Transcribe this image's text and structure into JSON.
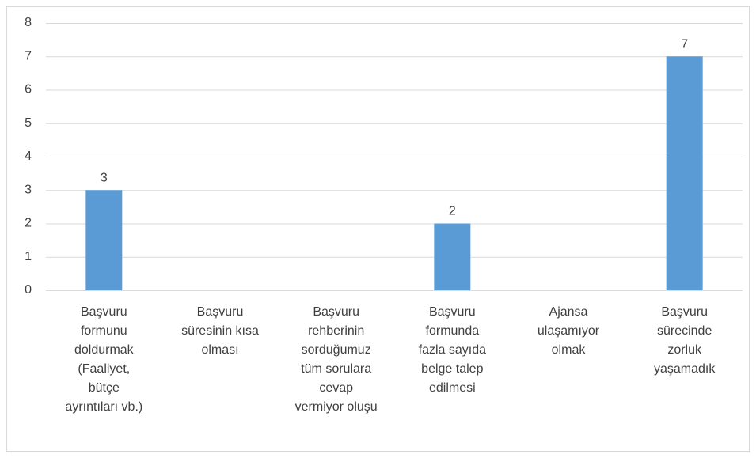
{
  "chart_data": {
    "type": "bar",
    "categories": [
      [
        "Başvuru",
        "formunu",
        "doldurmak",
        "(Faaliyet,",
        "bütçe",
        "ayrıntıları vb.)"
      ],
      [
        "Başvuru",
        "süresinin kısa",
        "olması"
      ],
      [
        "Başvuru",
        "rehberinin",
        "sorduğumuz",
        "tüm sorulara",
        "cevap",
        "vermiyor oluşu"
      ],
      [
        "Başvuru",
        "formunda",
        "fazla sayıda",
        "belge talep",
        "edilmesi"
      ],
      [
        "Ajansa",
        "ulaşamıyor",
        "olmak"
      ],
      [
        "Başvuru",
        "sürecinde",
        "zorluk",
        "yaşamadık"
      ]
    ],
    "values": [
      3,
      0,
      0,
      2,
      0,
      7
    ],
    "color": "#5b9bd5",
    "ylim": [
      0,
      8
    ],
    "yticks": [
      0,
      1,
      2,
      3,
      4,
      5,
      6,
      7,
      8
    ],
    "grid": true
  }
}
